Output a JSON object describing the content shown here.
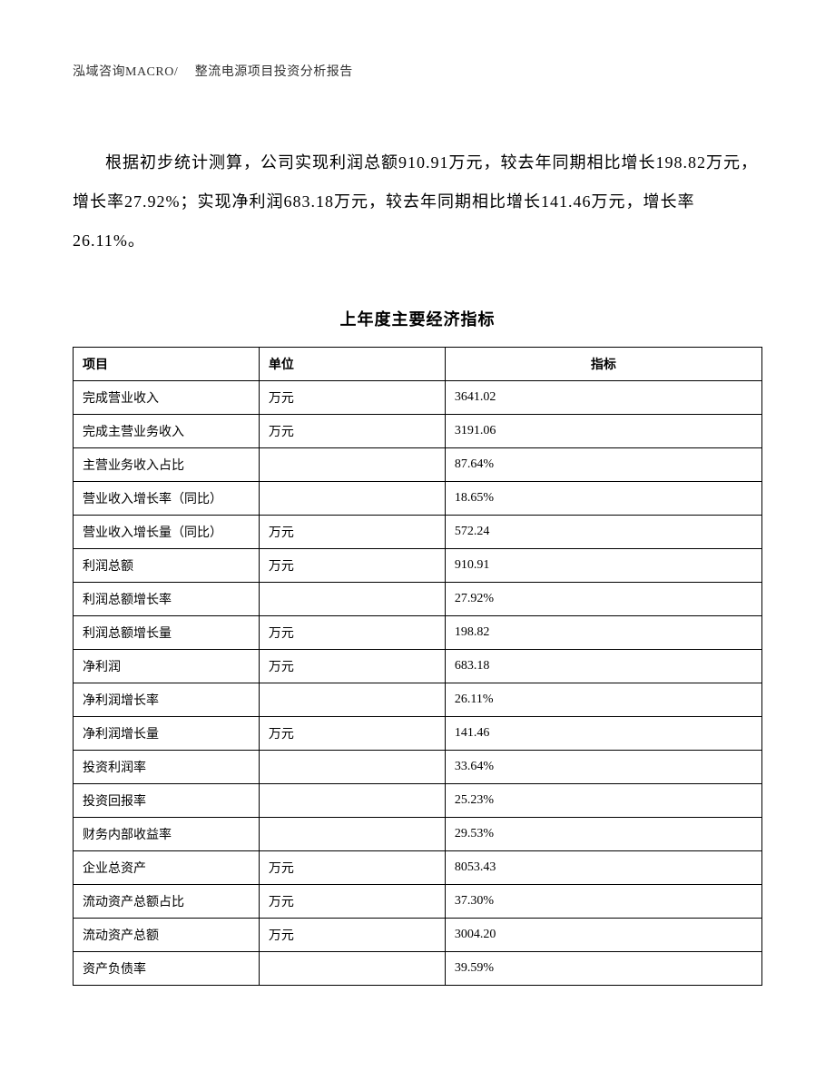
{
  "header": "泓域咨询MACRO/　 整流电源项目投资分析报告",
  "paragraph": "根据初步统计测算，公司实现利润总额910.91万元，较去年同期相比增长198.82万元，增长率27.92%；实现净利润683.18万元，较去年同期相比增长141.46万元，增长率26.11%。",
  "table_title": "上年度主要经济指标",
  "table": {
    "columns": [
      "项目",
      "单位",
      "指标"
    ],
    "rows": [
      [
        "完成营业收入",
        "万元",
        "3641.02"
      ],
      [
        "完成主营业务收入",
        "万元",
        "3191.06"
      ],
      [
        "主营业务收入占比",
        "",
        "87.64%"
      ],
      [
        "营业收入增长率（同比）",
        "",
        "18.65%"
      ],
      [
        "营业收入增长量（同比）",
        "万元",
        "572.24"
      ],
      [
        "利润总额",
        "万元",
        "910.91"
      ],
      [
        "利润总额增长率",
        "",
        "27.92%"
      ],
      [
        "利润总额增长量",
        "万元",
        "198.82"
      ],
      [
        "净利润",
        "万元",
        "683.18"
      ],
      [
        "净利润增长率",
        "",
        "26.11%"
      ],
      [
        "净利润增长量",
        "万元",
        "141.46"
      ],
      [
        "投资利润率",
        "",
        "33.64%"
      ],
      [
        "投资回报率",
        "",
        "25.23%"
      ],
      [
        "财务内部收益率",
        "",
        "29.53%"
      ],
      [
        "企业总资产",
        "万元",
        "8053.43"
      ],
      [
        "流动资产总额占比",
        "万元",
        "37.30%"
      ],
      [
        "流动资产总额",
        "万元",
        "3004.20"
      ],
      [
        "资产负债率",
        "",
        "39.59%"
      ]
    ]
  }
}
